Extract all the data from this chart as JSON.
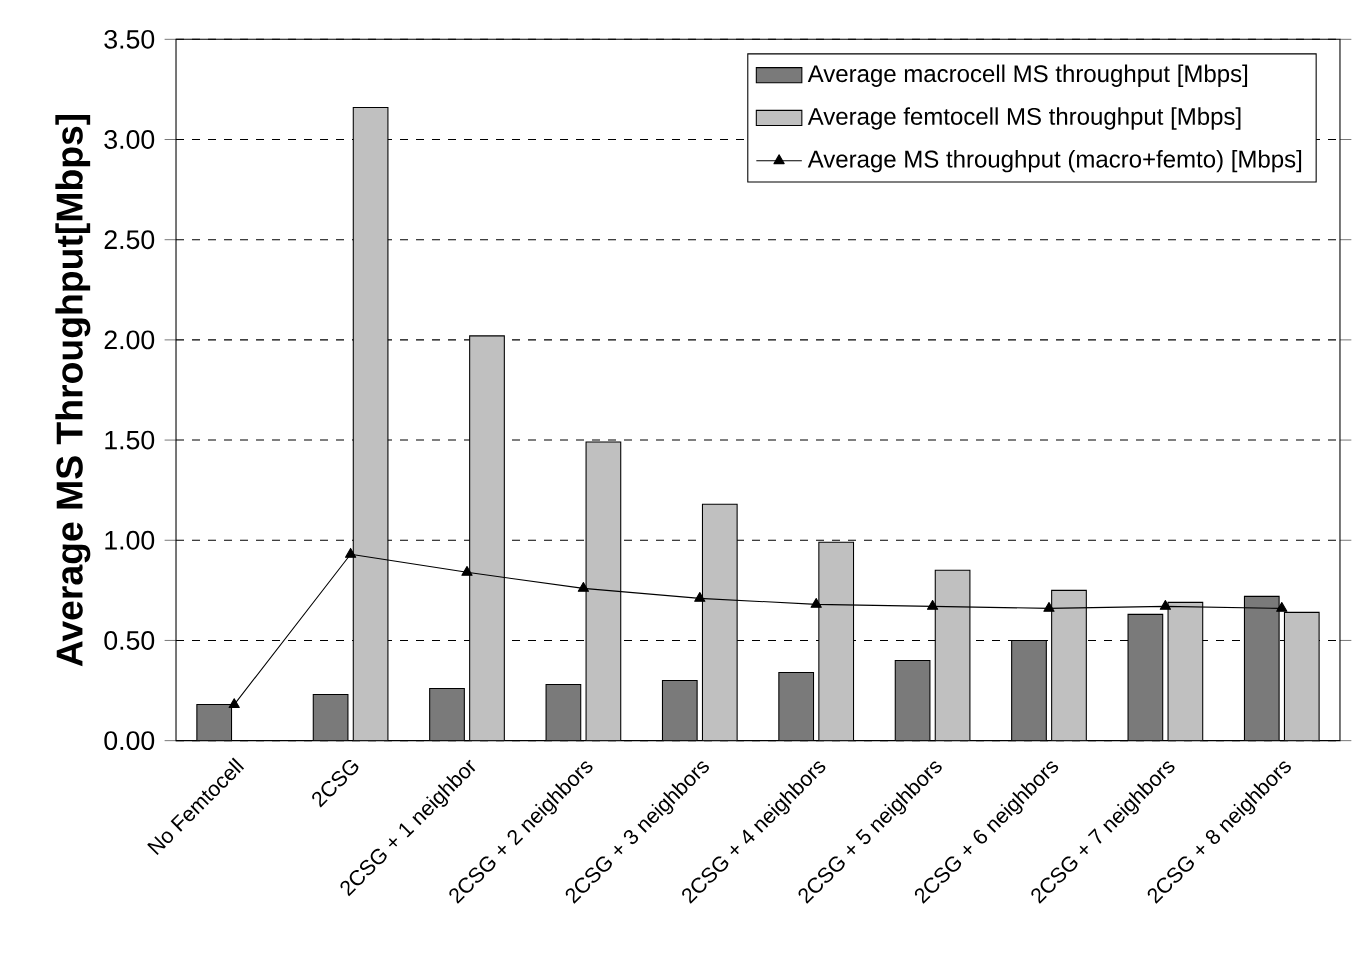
{
  "chart_data": {
    "type": "bar",
    "ylabel": "Average MS Throughput[Mbps]",
    "categories": [
      "No Femtocell",
      "2CSG",
      "2CSG + 1 neighbor",
      "2CSG + 2 neighbors",
      "2CSG + 3 neighbors",
      "2CSG + 4 neighbors",
      "2CSG + 5 neighbors",
      "2CSG + 6 neighbors",
      "2CSG + 7 neighbors",
      "2CSG + 8 neighbors"
    ],
    "series": [
      {
        "name": "Average macrocell MS throughput [Mbps]",
        "color": "#7a7a7a",
        "values": [
          0.18,
          0.23,
          0.26,
          0.28,
          0.3,
          0.34,
          0.4,
          0.5,
          0.63,
          0.72
        ]
      },
      {
        "name": "Average femtocell MS throughput [Mbps]",
        "color": "#c0c0c0",
        "values": [
          null,
          3.16,
          2.02,
          1.49,
          1.18,
          0.99,
          0.85,
          0.75,
          0.69,
          0.64
        ]
      },
      {
        "name": "Average MS throughput (macro+femto) [Mbps]",
        "type": "line",
        "color": "#000000",
        "values": [
          0.18,
          0.93,
          0.84,
          0.76,
          0.71,
          0.68,
          0.67,
          0.66,
          0.67,
          0.66
        ]
      }
    ],
    "ylim": [
      0,
      3.5
    ],
    "yticks": [
      {
        "value": 0,
        "label": "0.00"
      },
      {
        "value": 0.5,
        "label": "0.50"
      },
      {
        "value": 1,
        "label": "1.00"
      },
      {
        "value": 1.5,
        "label": "1.50"
      },
      {
        "value": 2,
        "label": "2.00"
      },
      {
        "value": 2.5,
        "label": "2.50"
      },
      {
        "value": 3,
        "label": "3.00"
      },
      {
        "value": 3.5,
        "label": "3.50"
      }
    ],
    "grid": "y",
    "legend": "top right",
    "marker": "triangle",
    "line_style": "solid"
  }
}
